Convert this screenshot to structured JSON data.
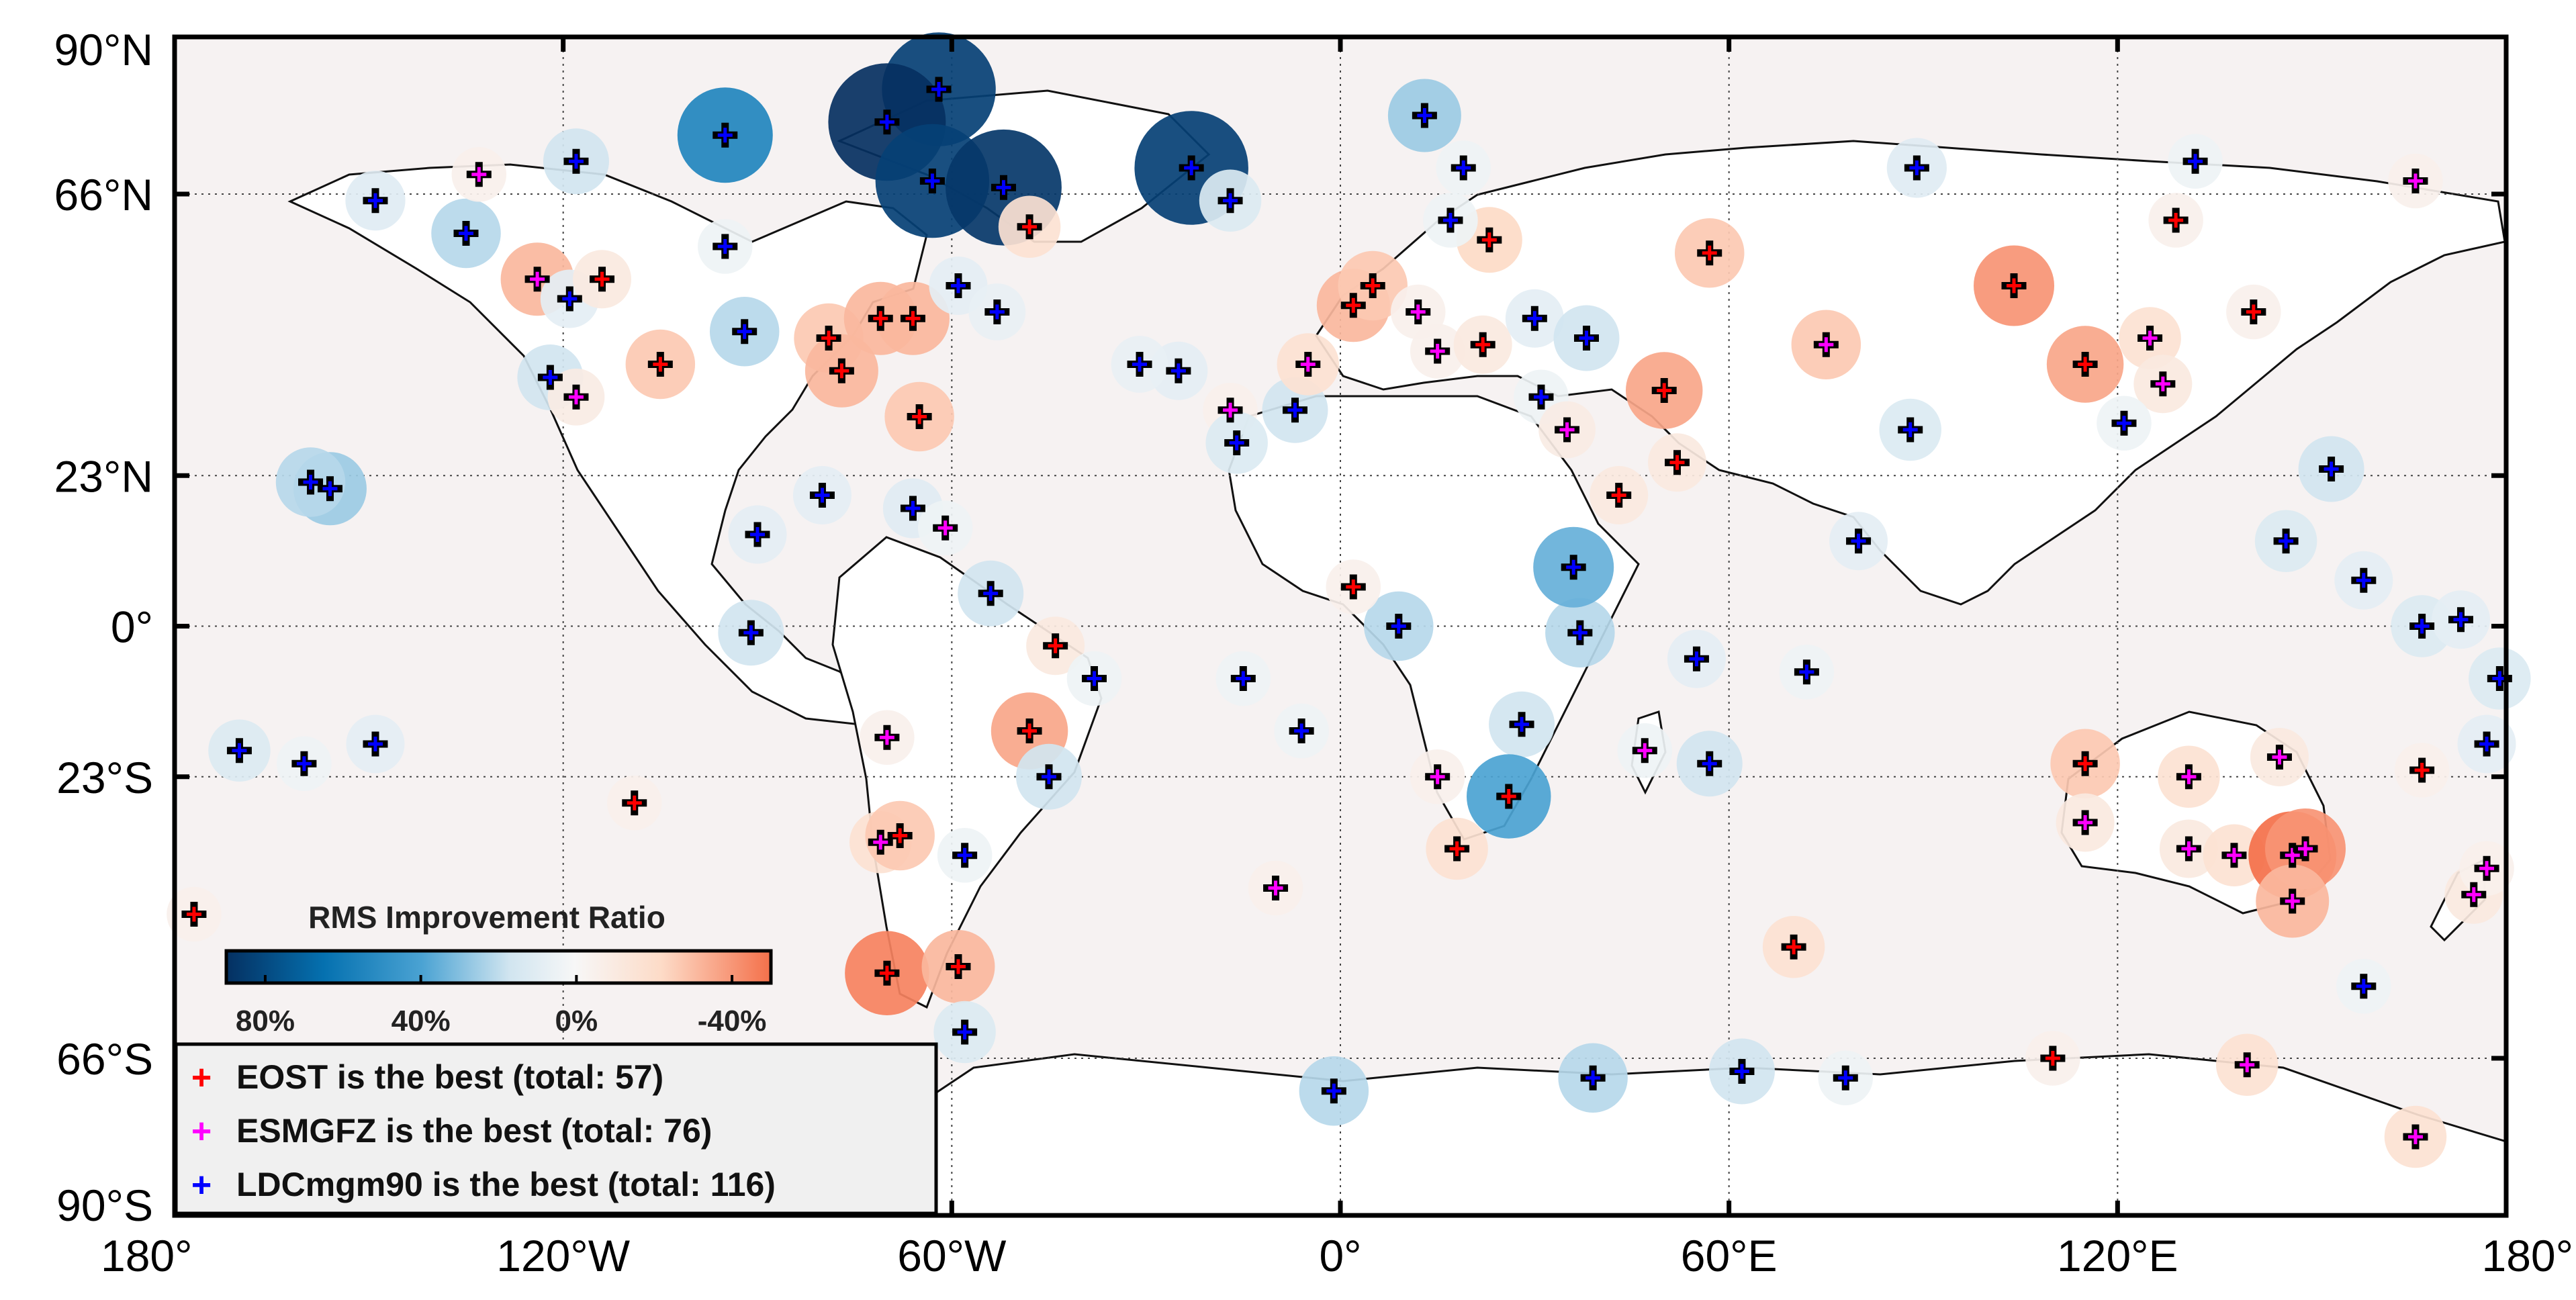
{
  "map": {
    "projection": "plate carree",
    "lon_range": [
      -180,
      180
    ],
    "lat_range": [
      -90,
      90
    ],
    "land_color": "#ffffff",
    "ocean_color": "#f6f2f2",
    "x_ticks": [
      {
        "lon": -180,
        "label": "180°"
      },
      {
        "lon": -120,
        "label": "120°W"
      },
      {
        "lon": -60,
        "label": "60°W"
      },
      {
        "lon": 0,
        "label": "0°"
      },
      {
        "lon": 60,
        "label": "60°E"
      },
      {
        "lon": 120,
        "label": "120°E"
      },
      {
        "lon": 180,
        "label": "180°"
      }
    ],
    "y_ticks": [
      {
        "lat": 90,
        "label": "90°N"
      },
      {
        "lat": 66,
        "label": "66°N"
      },
      {
        "lat": 23,
        "label": "23°N"
      },
      {
        "lat": 0,
        "label": "0°"
      },
      {
        "lat": -23,
        "label": "23°S"
      },
      {
        "lat": -66,
        "label": "66°S"
      },
      {
        "lat": -90,
        "label": "90°S"
      }
    ]
  },
  "colorbar": {
    "title": "RMS Improvement Ratio",
    "range": [
      90,
      -50
    ],
    "ticks": [
      {
        "value": 80,
        "label": "80%"
      },
      {
        "value": 40,
        "label": "40%"
      },
      {
        "value": 0,
        "label": "0%"
      },
      {
        "value": -40,
        "label": "-40%"
      }
    ]
  },
  "legend": {
    "items": [
      {
        "label": "EOST is the best (total: 57)",
        "color": "#ff0000"
      },
      {
        "label": "ESMGFZ is the best (total: 76)",
        "color": "#ff00ff"
      },
      {
        "label": "LDCmgm90 is the best (total: 116)",
        "color": "#0000ff"
      }
    ]
  },
  "stations": [
    {
      "lon": -62,
      "lat": 82,
      "best": "LDCmgm90",
      "ratio": 85
    },
    {
      "lon": -70,
      "lat": 77,
      "best": "LDCmgm90",
      "ratio": 90
    },
    {
      "lon": -63,
      "lat": 68,
      "best": "LDCmgm90",
      "ratio": 85
    },
    {
      "lon": -52,
      "lat": 67,
      "best": "LDCmgm90",
      "ratio": 88
    },
    {
      "lon": -23,
      "lat": 70,
      "best": "LDCmgm90",
      "ratio": 85
    },
    {
      "lon": -95,
      "lat": 75,
      "best": "LDCmgm90",
      "ratio": 60
    },
    {
      "lon": -17,
      "lat": 65,
      "best": "LDCmgm90",
      "ratio": 15
    },
    {
      "lon": -48,
      "lat": 61,
      "best": "EOST",
      "ratio": -15
    },
    {
      "lon": -118,
      "lat": 71,
      "best": "LDCmgm90",
      "ratio": 20
    },
    {
      "lon": -149,
      "lat": 65,
      "best": "LDCmgm90",
      "ratio": 12
    },
    {
      "lon": -135,
      "lat": 60,
      "best": "LDCmgm90",
      "ratio": 25
    },
    {
      "lon": -133,
      "lat": 69,
      "best": "ESMGFZ",
      "ratio": -5
    },
    {
      "lon": -95,
      "lat": 58,
      "best": "LDCmgm90",
      "ratio": 5
    },
    {
      "lon": -124,
      "lat": 53,
      "best": "ESMGFZ",
      "ratio": -30
    },
    {
      "lon": -119,
      "lat": 50,
      "best": "LDCmgm90",
      "ratio": 10
    },
    {
      "lon": -114,
      "lat": 53,
      "best": "EOST",
      "ratio": -10
    },
    {
      "lon": -105,
      "lat": 40,
      "best": "EOST",
      "ratio": -25
    },
    {
      "lon": -122,
      "lat": 38,
      "best": "LDCmgm90",
      "ratio": 20
    },
    {
      "lon": -118,
      "lat": 35,
      "best": "ESMGFZ",
      "ratio": -8
    },
    {
      "lon": -92,
      "lat": 45,
      "best": "LDCmgm90",
      "ratio": 25
    },
    {
      "lon": -79,
      "lat": 44,
      "best": "EOST",
      "ratio": -25
    },
    {
      "lon": -77,
      "lat": 39,
      "best": "EOST",
      "ratio": -30
    },
    {
      "lon": -71,
      "lat": 47,
      "best": "EOST",
      "ratio": -30
    },
    {
      "lon": -66,
      "lat": 47,
      "best": "EOST",
      "ratio": -30
    },
    {
      "lon": -59,
      "lat": 52,
      "best": "LDCmgm90",
      "ratio": 10
    },
    {
      "lon": -53,
      "lat": 48,
      "best": "LDCmgm90",
      "ratio": 8
    },
    {
      "lon": -65,
      "lat": 32,
      "best": "EOST",
      "ratio": -25
    },
    {
      "lon": -156,
      "lat": 21,
      "best": "LDCmgm90",
      "ratio": 30
    },
    {
      "lon": -159,
      "lat": 22,
      "best": "LDCmgm90",
      "ratio": 25
    },
    {
      "lon": -90,
      "lat": 14,
      "best": "LDCmgm90",
      "ratio": 10
    },
    {
      "lon": -80,
      "lat": 20,
      "best": "LDCmgm90",
      "ratio": 10
    },
    {
      "lon": -66,
      "lat": 18,
      "best": "LDCmgm90",
      "ratio": 12
    },
    {
      "lon": -61,
      "lat": 15,
      "best": "ESMGFZ",
      "ratio": 5
    },
    {
      "lon": -54,
      "lat": 5,
      "best": "LDCmgm90",
      "ratio": 20
    },
    {
      "lon": -91,
      "lat": -1,
      "best": "LDCmgm90",
      "ratio": 20
    },
    {
      "lon": -44,
      "lat": -3,
      "best": "EOST",
      "ratio": -10
    },
    {
      "lon": -38,
      "lat": -8,
      "best": "LDCmgm90",
      "ratio": 5
    },
    {
      "lon": -48,
      "lat": -16,
      "best": "EOST",
      "ratio": -35
    },
    {
      "lon": -45,
      "lat": -23,
      "best": "LDCmgm90",
      "ratio": 20
    },
    {
      "lon": -70,
      "lat": -17,
      "best": "ESMGFZ",
      "ratio": -5
    },
    {
      "lon": -71,
      "lat": -33,
      "best": "ESMGFZ",
      "ratio": -15
    },
    {
      "lon": -68,
      "lat": -32,
      "best": "EOST",
      "ratio": -25
    },
    {
      "lon": -58,
      "lat": -35,
      "best": "LDCmgm90",
      "ratio": 5
    },
    {
      "lon": -70,
      "lat": -53,
      "best": "EOST",
      "ratio": -45
    },
    {
      "lon": -59,
      "lat": -52,
      "best": "EOST",
      "ratio": -30
    },
    {
      "lon": -58,
      "lat": -62,
      "best": "LDCmgm90",
      "ratio": 15
    },
    {
      "lon": -149,
      "lat": -18,
      "best": "LDCmgm90",
      "ratio": 10
    },
    {
      "lon": -170,
      "lat": -19,
      "best": "LDCmgm90",
      "ratio": 15
    },
    {
      "lon": -160,
      "lat": -21,
      "best": "LDCmgm90",
      "ratio": 5
    },
    {
      "lon": -177,
      "lat": -44,
      "best": "EOST",
      "ratio": -5
    },
    {
      "lon": -109,
      "lat": -27,
      "best": "EOST",
      "ratio": -5
    },
    {
      "lon": -10,
      "lat": -40,
      "best": "ESMGFZ",
      "ratio": -5
    },
    {
      "lon": -15,
      "lat": -8,
      "best": "LDCmgm90",
      "ratio": 5
    },
    {
      "lon": -6,
      "lat": -16,
      "best": "LDCmgm90",
      "ratio": 5
    },
    {
      "lon": -17,
      "lat": 33,
      "best": "ESMGFZ",
      "ratio": -5
    },
    {
      "lon": -16,
      "lat": 28,
      "best": "LDCmgm90",
      "ratio": 15
    },
    {
      "lon": -7,
      "lat": 33,
      "best": "LDCmgm90",
      "ratio": 20
    },
    {
      "lon": -25,
      "lat": 39,
      "best": "LDCmgm90",
      "ratio": 10
    },
    {
      "lon": -31,
      "lat": 40,
      "best": "LDCmgm90",
      "ratio": 8
    },
    {
      "lon": -5,
      "lat": 40,
      "best": "ESMGFZ",
      "ratio": -15
    },
    {
      "lon": 2,
      "lat": 49,
      "best": "EOST",
      "ratio": -30
    },
    {
      "lon": 5,
      "lat": 52,
      "best": "EOST",
      "ratio": -25
    },
    {
      "lon": 13,
      "lat": 78,
      "best": "LDCmgm90",
      "ratio": 30
    },
    {
      "lon": 19,
      "lat": 70,
      "best": "LDCmgm90",
      "ratio": 5
    },
    {
      "lon": 23,
      "lat": 59,
      "best": "EOST",
      "ratio": -20
    },
    {
      "lon": 17,
      "lat": 62,
      "best": "LDCmgm90",
      "ratio": 5
    },
    {
      "lon": 12,
      "lat": 48,
      "best": "ESMGFZ",
      "ratio": -5
    },
    {
      "lon": 15,
      "lat": 42,
      "best": "ESMGFZ",
      "ratio": -5
    },
    {
      "lon": 22,
      "lat": 43,
      "best": "EOST",
      "ratio": -10
    },
    {
      "lon": 30,
      "lat": 47,
      "best": "LDCmgm90",
      "ratio": 10
    },
    {
      "lon": 38,
      "lat": 44,
      "best": "LDCmgm90",
      "ratio": 20
    },
    {
      "lon": 31,
      "lat": 35,
      "best": "LDCmgm90",
      "ratio": 5
    },
    {
      "lon": 35,
      "lat": 30,
      "best": "ESMGFZ",
      "ratio": -8
    },
    {
      "lon": 43,
      "lat": 20,
      "best": "EOST",
      "ratio": -10
    },
    {
      "lon": 50,
      "lat": 36,
      "best": "EOST",
      "ratio": -35
    },
    {
      "lon": 57,
      "lat": 57,
      "best": "EOST",
      "ratio": -25
    },
    {
      "lon": 75,
      "lat": 43,
      "best": "ESMGFZ",
      "ratio": -25
    },
    {
      "lon": 52,
      "lat": 25,
      "best": "EOST",
      "ratio": -10
    },
    {
      "lon": 80,
      "lat": 13,
      "best": "LDCmgm90",
      "ratio": 10
    },
    {
      "lon": 88,
      "lat": 30,
      "best": "LDCmgm90",
      "ratio": 15
    },
    {
      "lon": 89,
      "lat": 70,
      "best": "LDCmgm90",
      "ratio": 12
    },
    {
      "lon": 104,
      "lat": 52,
      "best": "EOST",
      "ratio": -40
    },
    {
      "lon": 115,
      "lat": 40,
      "best": "EOST",
      "ratio": -35
    },
    {
      "lon": 125,
      "lat": 44,
      "best": "ESMGFZ",
      "ratio": -15
    },
    {
      "lon": 127,
      "lat": 37,
      "best": "ESMGFZ",
      "ratio": -10
    },
    {
      "lon": 121,
      "lat": 31,
      "best": "LDCmgm90",
      "ratio": 5
    },
    {
      "lon": 141,
      "lat": 48,
      "best": "EOST",
      "ratio": -5
    },
    {
      "lon": 146,
      "lat": 13,
      "best": "LDCmgm90",
      "ratio": 15
    },
    {
      "lon": 153,
      "lat": 24,
      "best": "LDCmgm90",
      "ratio": 20
    },
    {
      "lon": 158,
      "lat": 7,
      "best": "LDCmgm90",
      "ratio": 10
    },
    {
      "lon": 167,
      "lat": 0,
      "best": "LDCmgm90",
      "ratio": 15
    },
    {
      "lon": 173,
      "lat": 1,
      "best": "LDCmgm90",
      "ratio": 10
    },
    {
      "lon": 179,
      "lat": -8,
      "best": "LDCmgm90",
      "ratio": 15
    },
    {
      "lon": 177,
      "lat": -18,
      "best": "LDCmgm90",
      "ratio": 10
    },
    {
      "lon": 167,
      "lat": -22,
      "best": "EOST",
      "ratio": -5
    },
    {
      "lon": 115,
      "lat": -21,
      "best": "EOST",
      "ratio": -25
    },
    {
      "lon": 115,
      "lat": -30,
      "best": "ESMGFZ",
      "ratio": -10
    },
    {
      "lon": 131,
      "lat": -23,
      "best": "ESMGFZ",
      "ratio": -15
    },
    {
      "lon": 131,
      "lat": -34,
      "best": "ESMGFZ",
      "ratio": -10
    },
    {
      "lon": 138,
      "lat": -35,
      "best": "ESMGFZ",
      "ratio": -15
    },
    {
      "lon": 147,
      "lat": -35,
      "best": "ESMGFZ",
      "ratio": -50
    },
    {
      "lon": 149,
      "lat": -34,
      "best": "ESMGFZ",
      "ratio": -40
    },
    {
      "lon": 147,
      "lat": -42,
      "best": "ESMGFZ",
      "ratio": -30
    },
    {
      "lon": 145,
      "lat": -20,
      "best": "ESMGFZ",
      "ratio": -10
    },
    {
      "lon": 175,
      "lat": -41,
      "best": "ESMGFZ",
      "ratio": -10
    },
    {
      "lon": 177,
      "lat": -37,
      "best": "ESMGFZ",
      "ratio": -5
    },
    {
      "lon": 158,
      "lat": -55,
      "best": "LDCmgm90",
      "ratio": 5
    },
    {
      "lon": 70,
      "lat": -49,
      "best": "EOST",
      "ratio": -15
    },
    {
      "lon": 57,
      "lat": -21,
      "best": "LDCmgm90",
      "ratio": 20
    },
    {
      "lon": 55,
      "lat": -5,
      "best": "LDCmgm90",
      "ratio": 10
    },
    {
      "lon": 72,
      "lat": -7,
      "best": "LDCmgm90",
      "ratio": 5
    },
    {
      "lon": 47,
      "lat": -19,
      "best": "ESMGFZ",
      "ratio": 5
    },
    {
      "lon": 37,
      "lat": -1,
      "best": "LDCmgm90",
      "ratio": 25
    },
    {
      "lon": 36,
      "lat": 9,
      "best": "LDCmgm90",
      "ratio": 40
    },
    {
      "lon": 28,
      "lat": -15,
      "best": "LDCmgm90",
      "ratio": 20
    },
    {
      "lon": 26,
      "lat": -26,
      "best": "EOST",
      "ratio": 45
    },
    {
      "lon": 18,
      "lat": -34,
      "best": "EOST",
      "ratio": -15
    },
    {
      "lon": 15,
      "lat": -23,
      "best": "ESMGFZ",
      "ratio": -5
    },
    {
      "lon": 9,
      "lat": 0,
      "best": "LDCmgm90",
      "ratio": 25
    },
    {
      "lon": 2,
      "lat": 6,
      "best": "EOST",
      "ratio": -5
    },
    {
      "lon": -1,
      "lat": -71,
      "best": "LDCmgm90",
      "ratio": 25
    },
    {
      "lon": 39,
      "lat": -69,
      "best": "LDCmgm90",
      "ratio": 25
    },
    {
      "lon": 62,
      "lat": -68,
      "best": "LDCmgm90",
      "ratio": 20
    },
    {
      "lon": 78,
      "lat": -69,
      "best": "LDCmgm90",
      "ratio": 5
    },
    {
      "lon": 110,
      "lat": -66,
      "best": "EOST",
      "ratio": -5
    },
    {
      "lon": 140,
      "lat": -67,
      "best": "ESMGFZ",
      "ratio": -15
    },
    {
      "lon": 166,
      "lat": -78,
      "best": "ESMGFZ",
      "ratio": -15
    },
    {
      "lon": 166,
      "lat": 68,
      "best": "ESMGFZ",
      "ratio": -5
    },
    {
      "lon": 129,
      "lat": 62,
      "best": "EOST",
      "ratio": -5
    },
    {
      "lon": 132,
      "lat": 71,
      "best": "LDCmgm90",
      "ratio": 5
    }
  ]
}
